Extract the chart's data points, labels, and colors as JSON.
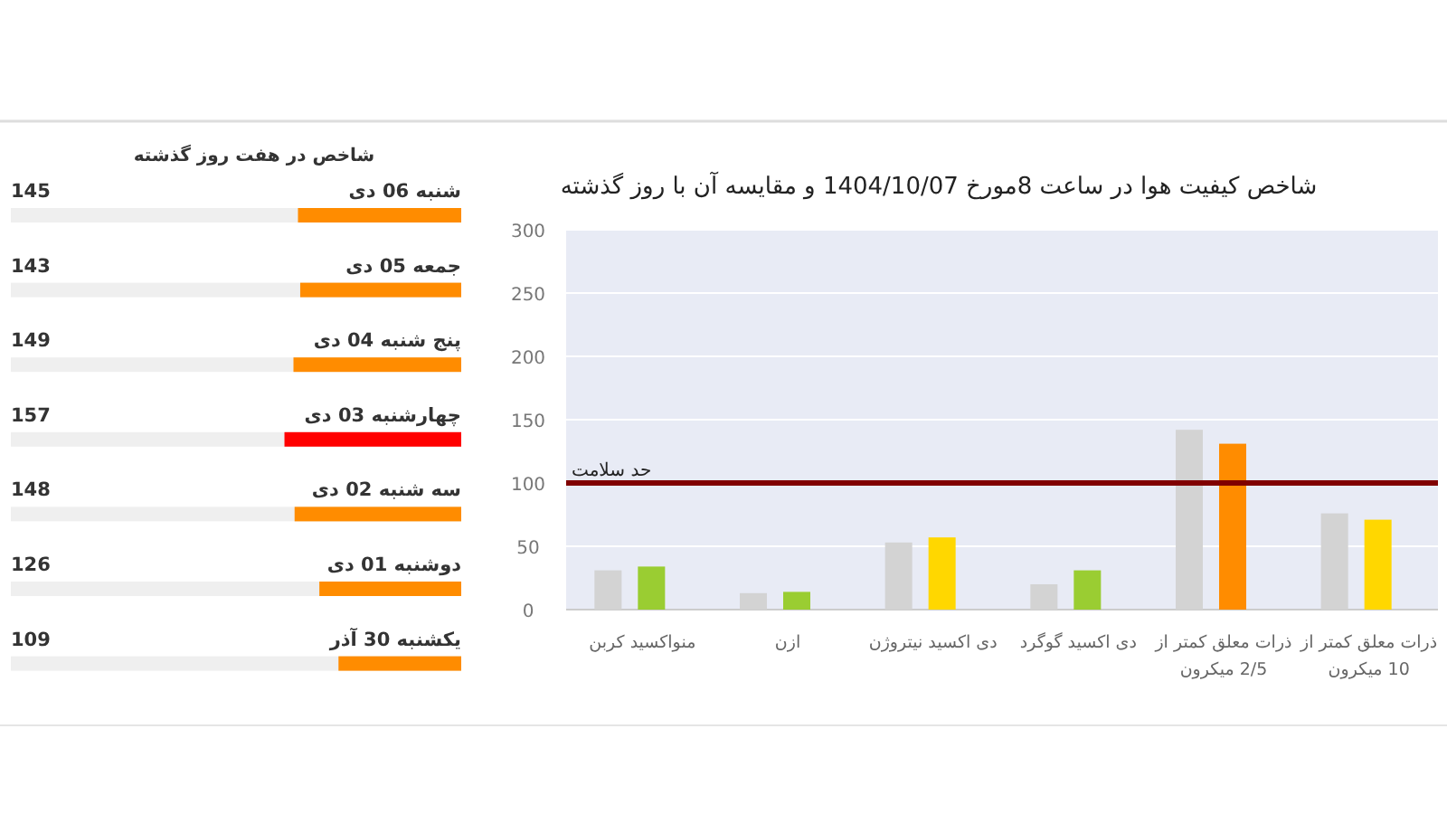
{
  "chart_data": [
    {
      "type": "bar",
      "orientation": "horizontal",
      "title": "شاخص در هفت روز گذشته",
      "categories": [
        "شنبه 06 دی",
        "جمعه 05 دی",
        "پنج شنبه 04 دی",
        "چهارشنبه 03 دی",
        "سه شنبه 02 دی",
        "دوشنبه 01 دی",
        "یکشنبه 30 آذر"
      ],
      "values": [
        145,
        143,
        149,
        157,
        148,
        126,
        109
      ],
      "colors": [
        "#ff8c00",
        "#ff8c00",
        "#ff8c00",
        "#ff0000",
        "#ff8c00",
        "#ff8c00",
        "#ff8c00"
      ],
      "xlim": [
        400,
        0
      ],
      "data_labels": true
    },
    {
      "type": "bar",
      "title": "شاخص کیفیت هوا در ساعت 8مورخ 1404/10/07 و مقایسه آن با روز گذشته",
      "categories": [
        "منواکسید کربن",
        "ازن",
        "دی اکسید نیتروژن",
        "دی اکسید گوگرد",
        "ذرات معلق کمتر از 2/5 میکرون",
        "ذرات معلق کمتر از 10 میکرون"
      ],
      "series": [
        {
          "color": "#d3d3d3",
          "values": [
            31,
            13,
            53,
            20,
            142,
            76
          ]
        },
        {
          "colors": [
            "#9acd32",
            "#9acd32",
            "#ffd700",
            "#9acd32",
            "#ff8c00",
            "#ffd700"
          ],
          "values": [
            34,
            14,
            57,
            31,
            131,
            71
          ]
        }
      ],
      "ylim": [
        0,
        300
      ],
      "yticks": [
        0,
        50,
        100,
        150,
        200,
        250,
        300
      ],
      "grid": "y",
      "ref_lines": [
        {
          "axis": "y",
          "value": 100,
          "label": "حد سلامت",
          "color": "#800000"
        }
      ]
    }
  ]
}
